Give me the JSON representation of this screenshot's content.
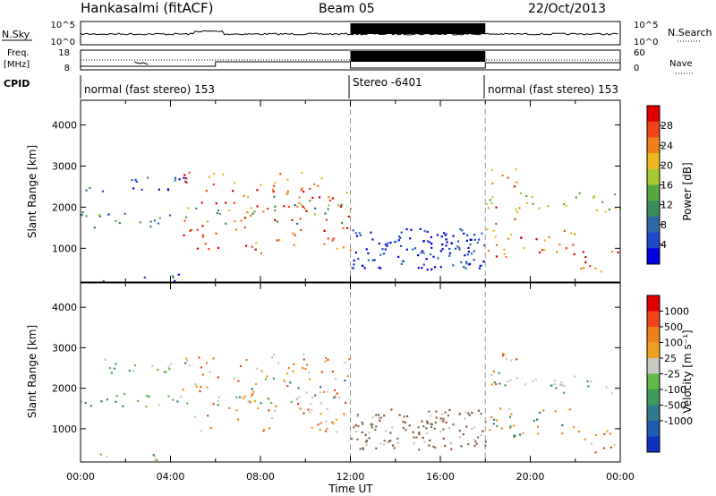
{
  "header": {
    "station": "Hankasalmi (fitACF)",
    "beam": "Beam 05",
    "date": "22/Oct/2013"
  },
  "strip_labels": {
    "nsky": "N.Sky",
    "nsky_ticks": [
      "10^5",
      "10^0"
    ],
    "nsearch": "N.Search",
    "freq": "Freq.",
    "freq_unit": "[MHz]",
    "freq_ticks": [
      "18",
      "8"
    ],
    "nave": "Nave",
    "nave_ticks": [
      "60",
      "0"
    ],
    "cpid": "CPID"
  },
  "cpid_segments": [
    {
      "label": "normal (fast stereo) 153"
    },
    {
      "label": "Stereo -6401"
    },
    {
      "label": "normal (fast stereo) 153"
    }
  ],
  "chart_data": [
    {
      "type": "heatmap",
      "title": "",
      "xlabel": "Time UT",
      "ylabel": "Slant Range [km]",
      "x_ticks": [
        "00:00",
        "04:00",
        "08:00",
        "12:00",
        "16:00",
        "20:00",
        "00:00"
      ],
      "xlim_hours": [
        0,
        24
      ],
      "y_ticks": [
        1000,
        2000,
        3000,
        4000
      ],
      "ylim": [
        180,
        4600
      ],
      "colorbar": {
        "label": "Power [dB]",
        "ticks": [
          4,
          8,
          12,
          16,
          20,
          24,
          28
        ],
        "range": [
          0,
          32
        ],
        "colors": [
          "#0000e0",
          "#1f48c8",
          "#2f6aa8",
          "#3a8a5c",
          "#56a83c",
          "#a8c832",
          "#f0b820",
          "#f08018",
          "#f04418",
          "#e00000"
        ]
      }
    },
    {
      "type": "heatmap",
      "title": "",
      "xlabel": "Time UT",
      "ylabel": "Slant Range [km]",
      "x_ticks": [
        "00:00",
        "04:00",
        "08:00",
        "12:00",
        "16:00",
        "20:00",
        "00:00"
      ],
      "xlim_hours": [
        0,
        24
      ],
      "y_ticks": [
        1000,
        2000,
        3000,
        4000
      ],
      "ylim": [
        180,
        4600
      ],
      "colorbar": {
        "label": "Velocity [m s⁻¹]",
        "ticks": [
          "1000",
          "500",
          "100",
          "25",
          "-25",
          "-100",
          "-500",
          "-1000"
        ],
        "colors": [
          "#1030c0",
          "#1e5ab0",
          "#2f7a8c",
          "#3c9a5a",
          "#60b848",
          "#c8c8c0",
          "#f0a020",
          "#f08018",
          "#f04418",
          "#e00000"
        ]
      }
    }
  ]
}
